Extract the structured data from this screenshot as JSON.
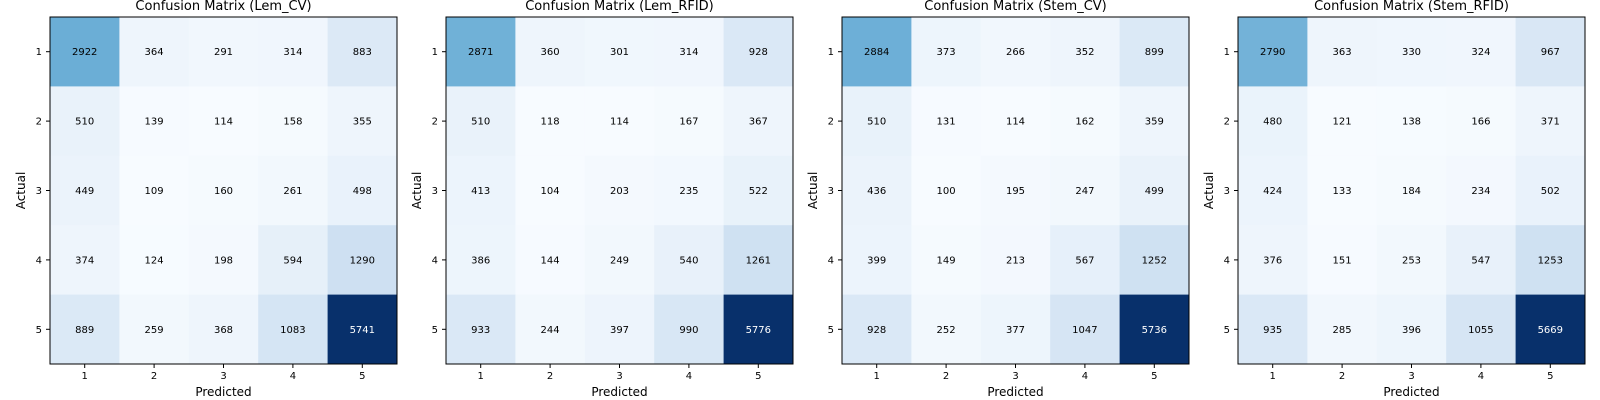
{
  "chart_data": [
    {
      "type": "heatmap",
      "title": "Confusion Matrix (Lem_CV)",
      "xlabel": "Predicted",
      "ylabel": "Actual",
      "x_categories": [
        "1",
        "2",
        "3",
        "4",
        "5"
      ],
      "y_categories": [
        "1",
        "2",
        "3",
        "4",
        "5"
      ],
      "values": [
        [
          2922,
          364,
          291,
          314,
          883
        ],
        [
          510,
          139,
          114,
          158,
          355
        ],
        [
          449,
          109,
          160,
          261,
          498
        ],
        [
          374,
          124,
          198,
          594,
          1290
        ],
        [
          889,
          259,
          368,
          1083,
          5741
        ]
      ],
      "colormap": "Blues",
      "grid": false
    },
    {
      "type": "heatmap",
      "title": "Confusion Matrix (Lem_RFID)",
      "xlabel": "Predicted",
      "ylabel": "Actual",
      "x_categories": [
        "1",
        "2",
        "3",
        "4",
        "5"
      ],
      "y_categories": [
        "1",
        "2",
        "3",
        "4",
        "5"
      ],
      "values": [
        [
          2871,
          360,
          301,
          314,
          928
        ],
        [
          510,
          118,
          114,
          167,
          367
        ],
        [
          413,
          104,
          203,
          235,
          522
        ],
        [
          386,
          144,
          249,
          540,
          1261
        ],
        [
          933,
          244,
          397,
          990,
          5776
        ]
      ],
      "colormap": "Blues",
      "grid": false
    },
    {
      "type": "heatmap",
      "title": "Confusion Matrix (Stem_CV)",
      "xlabel": "Predicted",
      "ylabel": "Actual",
      "x_categories": [
        "1",
        "2",
        "3",
        "4",
        "5"
      ],
      "y_categories": [
        "1",
        "2",
        "3",
        "4",
        "5"
      ],
      "values": [
        [
          2884,
          373,
          266,
          352,
          899
        ],
        [
          510,
          131,
          114,
          162,
          359
        ],
        [
          436,
          100,
          195,
          247,
          499
        ],
        [
          399,
          149,
          213,
          567,
          1252
        ],
        [
          928,
          252,
          377,
          1047,
          5736
        ]
      ],
      "colormap": "Blues",
      "grid": false
    },
    {
      "type": "heatmap",
      "title": "Confusion Matrix (Stem_RFID)",
      "xlabel": "Predicted",
      "ylabel": "Actual",
      "x_categories": [
        "1",
        "2",
        "3",
        "4",
        "5"
      ],
      "y_categories": [
        "1",
        "2",
        "3",
        "4",
        "5"
      ],
      "values": [
        [
          2790,
          363,
          330,
          324,
          967
        ],
        [
          480,
          121,
          138,
          166,
          371
        ],
        [
          424,
          133,
          184,
          234,
          502
        ],
        [
          376,
          151,
          253,
          547,
          1253
        ],
        [
          935,
          285,
          396,
          1055,
          5669
        ]
      ],
      "colormap": "Blues",
      "grid": false
    }
  ]
}
